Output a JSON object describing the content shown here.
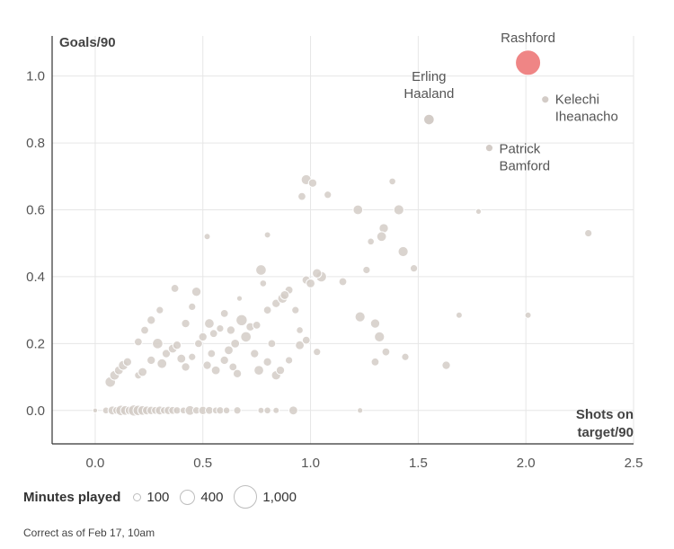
{
  "chart_data": {
    "type": "scatter",
    "ylabel": "Goals/90",
    "xlabel": [
      "Shots on",
      "target/90"
    ],
    "xlim": [
      -0.2,
      2.5
    ],
    "ylim": [
      -0.1,
      1.12
    ],
    "xticks": [
      "0.0",
      "0.5",
      "1.0",
      "1.5",
      "2.0",
      "2.5"
    ],
    "yticks": [
      "0.0",
      "0.2",
      "0.4",
      "0.6",
      "0.8",
      "1.0"
    ],
    "grid": true,
    "colors": {
      "highlight": "#ef8585",
      "default": "#d3ccc7",
      "grid": "#e6e6e6",
      "axis": "#333333"
    },
    "highlighted": [
      {
        "label": "Rashford",
        "x": 2.01,
        "y": 1.04,
        "minutes": 1000
      }
    ],
    "labelled": [
      {
        "label": [
          "Erling",
          "Haaland"
        ],
        "x": 1.55,
        "y": 0.87,
        "minutes": 700
      },
      {
        "label": [
          "Kelechi",
          "Iheanacho"
        ],
        "x": 2.09,
        "y": 0.93,
        "minutes": 350
      },
      {
        "label": [
          "Patrick",
          "Bamford"
        ],
        "x": 1.83,
        "y": 0.785,
        "minutes": 350
      }
    ],
    "points": [
      [
        0.0,
        0.0,
        150
      ],
      [
        0.05,
        0.0,
        300
      ],
      [
        0.08,
        0.0,
        500
      ],
      [
        0.1,
        0.0,
        400
      ],
      [
        0.12,
        0.0,
        700
      ],
      [
        0.14,
        0.0,
        600
      ],
      [
        0.16,
        0.0,
        500
      ],
      [
        0.18,
        0.0,
        800
      ],
      [
        0.2,
        0.0,
        700
      ],
      [
        0.22,
        0.0,
        600
      ],
      [
        0.24,
        0.0,
        500
      ],
      [
        0.26,
        0.0,
        450
      ],
      [
        0.28,
        0.0,
        400
      ],
      [
        0.3,
        0.0,
        500
      ],
      [
        0.32,
        0.0,
        350
      ],
      [
        0.34,
        0.0,
        450
      ],
      [
        0.36,
        0.0,
        400
      ],
      [
        0.38,
        0.0,
        350
      ],
      [
        0.41,
        0.0,
        300
      ],
      [
        0.44,
        0.0,
        600
      ],
      [
        0.47,
        0.0,
        350
      ],
      [
        0.5,
        0.0,
        450
      ],
      [
        0.53,
        0.0,
        400
      ],
      [
        0.56,
        0.0,
        300
      ],
      [
        0.58,
        0.0,
        350
      ],
      [
        0.61,
        0.0,
        300
      ],
      [
        0.66,
        0.0,
        350
      ],
      [
        0.77,
        0.0,
        250
      ],
      [
        0.8,
        0.0,
        300
      ],
      [
        0.84,
        0.0,
        250
      ],
      [
        0.92,
        0.0,
        500
      ],
      [
        1.23,
        0.0,
        200
      ],
      [
        0.07,
        0.085,
        700
      ],
      [
        0.09,
        0.105,
        600
      ],
      [
        0.11,
        0.12,
        500
      ],
      [
        0.13,
        0.135,
        600
      ],
      [
        0.15,
        0.145,
        450
      ],
      [
        0.2,
        0.105,
        350
      ],
      [
        0.22,
        0.115,
        500
      ],
      [
        0.26,
        0.15,
        450
      ],
      [
        0.29,
        0.2,
        700
      ],
      [
        0.31,
        0.14,
        600
      ],
      [
        0.33,
        0.17,
        450
      ],
      [
        0.36,
        0.185,
        500
      ],
      [
        0.38,
        0.195,
        450
      ],
      [
        0.4,
        0.155,
        500
      ],
      [
        0.42,
        0.13,
        450
      ],
      [
        0.45,
        0.16,
        350
      ],
      [
        0.48,
        0.2,
        400
      ],
      [
        0.52,
        0.135,
        450
      ],
      [
        0.54,
        0.17,
        400
      ],
      [
        0.56,
        0.12,
        500
      ],
      [
        0.6,
        0.15,
        450
      ],
      [
        0.62,
        0.18,
        500
      ],
      [
        0.64,
        0.13,
        400
      ],
      [
        0.66,
        0.11,
        450
      ],
      [
        0.7,
        0.22,
        700
      ],
      [
        0.74,
        0.17,
        450
      ],
      [
        0.76,
        0.12,
        600
      ],
      [
        0.8,
        0.145,
        450
      ],
      [
        0.82,
        0.2,
        400
      ],
      [
        0.84,
        0.105,
        550
      ],
      [
        0.86,
        0.12,
        450
      ],
      [
        0.9,
        0.15,
        350
      ],
      [
        0.95,
        0.195,
        500
      ],
      [
        0.98,
        0.21,
        400
      ],
      [
        1.03,
        0.175,
        350
      ],
      [
        1.05,
        0.4,
        700
      ],
      [
        0.2,
        0.205,
        400
      ],
      [
        0.23,
        0.24,
        400
      ],
      [
        0.26,
        0.27,
        450
      ],
      [
        0.3,
        0.3,
        350
      ],
      [
        0.37,
        0.365,
        400
      ],
      [
        0.42,
        0.26,
        450
      ],
      [
        0.45,
        0.31,
        350
      ],
      [
        0.47,
        0.355,
        550
      ],
      [
        0.5,
        0.22,
        450
      ],
      [
        0.53,
        0.26,
        600
      ],
      [
        0.55,
        0.23,
        400
      ],
      [
        0.58,
        0.245,
        350
      ],
      [
        0.6,
        0.29,
        400
      ],
      [
        0.63,
        0.24,
        450
      ],
      [
        0.65,
        0.2,
        500
      ],
      [
        0.68,
        0.27,
        800
      ],
      [
        0.72,
        0.25,
        450
      ],
      [
        0.75,
        0.255,
        400
      ],
      [
        0.77,
        0.42,
        700
      ],
      [
        0.8,
        0.3,
        400
      ],
      [
        0.84,
        0.32,
        450
      ],
      [
        0.87,
        0.335,
        600
      ],
      [
        0.9,
        0.36,
        400
      ],
      [
        0.93,
        0.3,
        350
      ],
      [
        0.95,
        0.24,
        300
      ],
      [
        0.98,
        0.39,
        450
      ],
      [
        1.0,
        0.38,
        500
      ],
      [
        1.03,
        0.41,
        550
      ],
      [
        0.52,
        0.52,
        250
      ],
      [
        0.67,
        0.335,
        200
      ],
      [
        0.78,
        0.38,
        300
      ],
      [
        0.8,
        0.525,
        250
      ],
      [
        0.88,
        0.345,
        500
      ],
      [
        0.98,
        0.69,
        650
      ],
      [
        1.01,
        0.68,
        450
      ],
      [
        0.96,
        0.64,
        400
      ],
      [
        1.08,
        0.645,
        350
      ],
      [
        1.22,
        0.6,
        600
      ],
      [
        1.34,
        0.545,
        550
      ],
      [
        1.33,
        0.52,
        600
      ],
      [
        1.41,
        0.6,
        650
      ],
      [
        1.38,
        0.685,
        300
      ],
      [
        1.28,
        0.505,
        300
      ],
      [
        1.26,
        0.42,
        350
      ],
      [
        1.15,
        0.385,
        400
      ],
      [
        1.43,
        0.475,
        650
      ],
      [
        1.48,
        0.425,
        350
      ],
      [
        1.23,
        0.28,
        650
      ],
      [
        1.3,
        0.26,
        550
      ],
      [
        1.32,
        0.22,
        650
      ],
      [
        1.35,
        0.175,
        400
      ],
      [
        1.3,
        0.145,
        400
      ],
      [
        1.44,
        0.16,
        350
      ],
      [
        1.63,
        0.135,
        450
      ],
      [
        1.69,
        0.285,
        250
      ],
      [
        1.78,
        0.595,
        200
      ],
      [
        2.01,
        0.285,
        250
      ],
      [
        2.29,
        0.53,
        350
      ]
    ]
  },
  "legend": {
    "title": "Minutes played",
    "items": [
      "100",
      "400",
      "1,000"
    ]
  },
  "footnote": "Correct as of Feb 17, 10am"
}
